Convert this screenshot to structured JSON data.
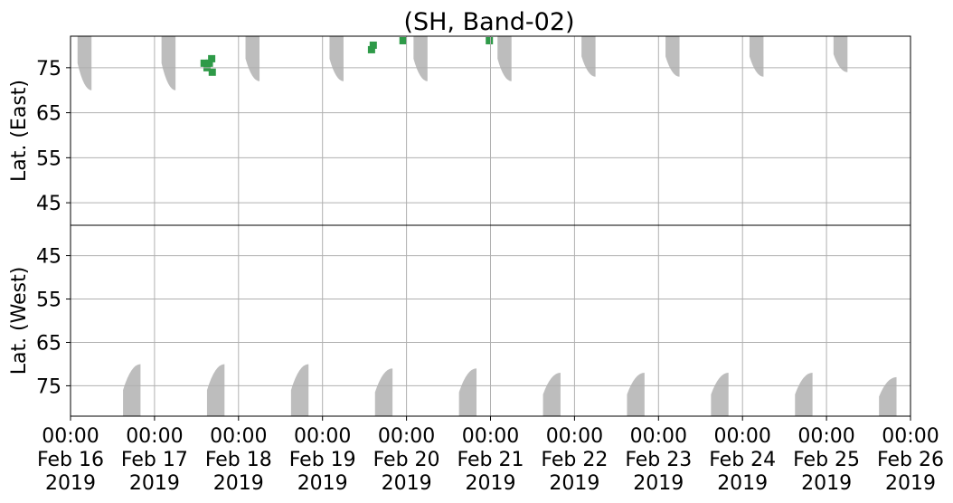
{
  "chart_data": {
    "type": "heatmap",
    "title": "(SH, Band-02)",
    "x_tick_labels": [
      [
        "00:00",
        "Feb 16",
        "2019"
      ],
      [
        "00:00",
        "Feb 17",
        "2019"
      ],
      [
        "00:00",
        "Feb 18",
        "2019"
      ],
      [
        "00:00",
        "Feb 19",
        "2019"
      ],
      [
        "00:00",
        "Feb 20",
        "2019"
      ],
      [
        "00:00",
        "Feb 21",
        "2019"
      ],
      [
        "00:00",
        "Feb 22",
        "2019"
      ],
      [
        "00:00",
        "Feb 23",
        "2019"
      ],
      [
        "00:00",
        "Feb 24",
        "2019"
      ],
      [
        "00:00",
        "Feb 25",
        "2019"
      ],
      [
        "00:00",
        "Feb 26",
        "2019"
      ]
    ],
    "xlim": [
      "2019-02-16 00:00",
      "2019-02-26 00:00"
    ],
    "grid": true,
    "colors": {
      "coverage": "#bdbdbd",
      "detection": "#2e9a48",
      "grid": "#b0b0b0"
    },
    "panels": [
      {
        "ylabel": "Lat. (East)",
        "yticks": [
          45,
          55,
          65,
          75
        ],
        "ylim": [
          82,
          40
        ],
        "coverage_bands": [
          {
            "start": "2019-02-16 02:00",
            "end": "2019-02-16 06:00",
            "lat_edge": 70
          },
          {
            "start": "2019-02-17 02:00",
            "end": "2019-02-17 06:00",
            "lat_edge": 70
          },
          {
            "start": "2019-02-18 02:00",
            "end": "2019-02-18 06:00",
            "lat_edge": 72
          },
          {
            "start": "2019-02-19 02:00",
            "end": "2019-02-19 06:00",
            "lat_edge": 72
          },
          {
            "start": "2019-02-20 02:00",
            "end": "2019-02-20 06:00",
            "lat_edge": 72
          },
          {
            "start": "2019-02-21 02:00",
            "end": "2019-02-21 06:00",
            "lat_edge": 72
          },
          {
            "start": "2019-02-22 02:00",
            "end": "2019-02-22 06:00",
            "lat_edge": 73
          },
          {
            "start": "2019-02-23 02:00",
            "end": "2019-02-23 06:00",
            "lat_edge": 73
          },
          {
            "start": "2019-02-24 02:00",
            "end": "2019-02-24 06:00",
            "lat_edge": 73
          },
          {
            "start": "2019-02-25 02:00",
            "end": "2019-02-25 06:00",
            "lat_edge": 74
          }
        ],
        "detections": [
          {
            "time": "2019-02-17 14:10",
            "lat": 76
          },
          {
            "time": "2019-02-17 15:00",
            "lat": 75
          },
          {
            "time": "2019-02-17 15:40",
            "lat": 76
          },
          {
            "time": "2019-02-17 16:20",
            "lat": 77
          },
          {
            "time": "2019-02-17 16:30",
            "lat": 74
          },
          {
            "time": "2019-02-19 14:00",
            "lat": 79
          },
          {
            "time": "2019-02-19 14:30",
            "lat": 80
          },
          {
            "time": "2019-02-19 23:00",
            "lat": 81
          },
          {
            "time": "2019-02-20 23:40",
            "lat": 81
          }
        ]
      },
      {
        "ylabel": "Lat. (West)",
        "yticks": [
          45,
          55,
          65,
          75
        ],
        "ylim": [
          38,
          82
        ],
        "coverage_bands": [
          {
            "start": "2019-02-16 15:00",
            "end": "2019-02-16 20:00",
            "lat_edge": 70
          },
          {
            "start": "2019-02-17 15:00",
            "end": "2019-02-17 20:00",
            "lat_edge": 70
          },
          {
            "start": "2019-02-18 15:00",
            "end": "2019-02-18 20:00",
            "lat_edge": 70
          },
          {
            "start": "2019-02-19 15:00",
            "end": "2019-02-19 20:00",
            "lat_edge": 71
          },
          {
            "start": "2019-02-20 15:00",
            "end": "2019-02-20 20:00",
            "lat_edge": 71
          },
          {
            "start": "2019-02-21 15:00",
            "end": "2019-02-21 20:00",
            "lat_edge": 72
          },
          {
            "start": "2019-02-22 15:00",
            "end": "2019-02-22 20:00",
            "lat_edge": 72
          },
          {
            "start": "2019-02-23 15:00",
            "end": "2019-02-23 20:00",
            "lat_edge": 72
          },
          {
            "start": "2019-02-24 15:00",
            "end": "2019-02-24 20:00",
            "lat_edge": 72
          },
          {
            "start": "2019-02-25 15:00",
            "end": "2019-02-25 20:00",
            "lat_edge": 73
          }
        ],
        "detections": []
      }
    ]
  }
}
